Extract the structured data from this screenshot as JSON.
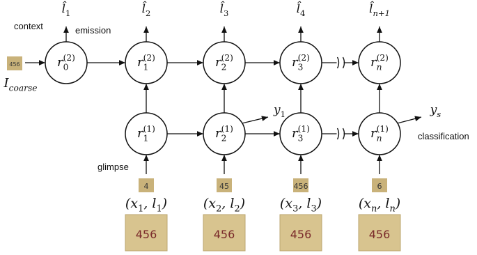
{
  "context_label": "context",
  "emission_label": "emission",
  "glimpse_label": "glimpse",
  "classification_label": "classification",
  "coarse_input": {
    "image_text": "456",
    "label": [
      {
        "t": "I"
      },
      {
        "t": "coarse",
        "pos": "sub"
      }
    ]
  },
  "outputs": [
    [
      {
        "t": "l̂"
      },
      {
        "t": "1",
        "pos": "sub"
      }
    ],
    [
      {
        "t": "l̂"
      },
      {
        "t": "2",
        "pos": "sub"
      }
    ],
    [
      {
        "t": "l̂"
      },
      {
        "t": "3",
        "pos": "sub"
      }
    ],
    [
      {
        "t": "l̂"
      },
      {
        "t": "4",
        "pos": "sub"
      }
    ],
    [
      {
        "t": "l̂"
      },
      {
        "t": "n+1",
        "pos": "sub"
      }
    ]
  ],
  "top_nodes": [
    [
      {
        "t": "r"
      },
      {
        "t": "(2)",
        "pos": "sup"
      },
      {
        "t": "0",
        "pos": "sub"
      }
    ],
    [
      {
        "t": "r"
      },
      {
        "t": "(2)",
        "pos": "sup"
      },
      {
        "t": "1",
        "pos": "sub"
      }
    ],
    [
      {
        "t": "r"
      },
      {
        "t": "(2)",
        "pos": "sup"
      },
      {
        "t": "2",
        "pos": "sub"
      }
    ],
    [
      {
        "t": "r"
      },
      {
        "t": "(2)",
        "pos": "sup"
      },
      {
        "t": "3",
        "pos": "sub"
      }
    ],
    [
      {
        "t": "r"
      },
      {
        "t": "(2)",
        "pos": "sup"
      },
      {
        "t": "n",
        "pos": "sub"
      }
    ]
  ],
  "bottom_nodes": [
    [
      {
        "t": "r"
      },
      {
        "t": "(1)",
        "pos": "sup"
      },
      {
        "t": "1",
        "pos": "sub"
      }
    ],
    [
      {
        "t": "r"
      },
      {
        "t": "(1)",
        "pos": "sup"
      },
      {
        "t": "2",
        "pos": "sub"
      }
    ],
    [
      {
        "t": "r"
      },
      {
        "t": "(1)",
        "pos": "sup"
      },
      {
        "t": "3",
        "pos": "sub"
      }
    ],
    [
      {
        "t": "r"
      },
      {
        "t": "(1)",
        "pos": "sup"
      },
      {
        "t": "n",
        "pos": "sub"
      }
    ]
  ],
  "predictions": [
    [
      {
        "t": "y"
      },
      {
        "t": "1",
        "pos": "sub"
      }
    ],
    [
      {
        "t": "y"
      },
      {
        "t": "s",
        "pos": "sub"
      }
    ]
  ],
  "glimpses": [
    {
      "crop_text": "4",
      "image_text": "456",
      "label": [
        {
          "t": "(x"
        },
        {
          "t": "1",
          "pos": "sub"
        },
        {
          "t": ", l"
        },
        {
          "t": "1",
          "pos": "sub"
        },
        {
          "t": ")"
        }
      ]
    },
    {
      "crop_text": "45",
      "image_text": "456",
      "label": [
        {
          "t": "(x"
        },
        {
          "t": "2",
          "pos": "sub"
        },
        {
          "t": ", l"
        },
        {
          "t": "2",
          "pos": "sub"
        },
        {
          "t": ")"
        }
      ]
    },
    {
      "crop_text": "456",
      "image_text": "456",
      "label": [
        {
          "t": "(x"
        },
        {
          "t": "3",
          "pos": "sub"
        },
        {
          "t": ", l"
        },
        {
          "t": "3",
          "pos": "sub"
        },
        {
          "t": ")"
        }
      ]
    },
    {
      "crop_text": "6",
      "image_text": "456",
      "label": [
        {
          "t": "(x"
        },
        {
          "t": "n",
          "pos": "sub"
        },
        {
          "t": ", l"
        },
        {
          "t": "n",
          "pos": "sub"
        },
        {
          "t": ")"
        }
      ]
    }
  ]
}
